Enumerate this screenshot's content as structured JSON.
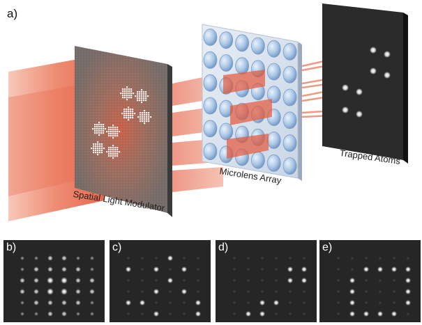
{
  "main_label": "a)",
  "components": {
    "slm": "Spatial Light Modulator",
    "mla": "Microlens Array",
    "atoms": "Trapped Atoms"
  },
  "sub_panels": [
    {
      "label": "b)",
      "pattern": "full-grid"
    },
    {
      "label": "c)",
      "pattern": "scattered"
    },
    {
      "label": "d)",
      "pattern": "two-clusters"
    },
    {
      "label": "e)",
      "pattern": "ring"
    }
  ],
  "colors": {
    "beam": "#e8553a",
    "slm_face": "#8a7670",
    "lens": "#a9c6e6",
    "atom_plate": "#2a2a2a",
    "sub_bg": "#262626"
  }
}
